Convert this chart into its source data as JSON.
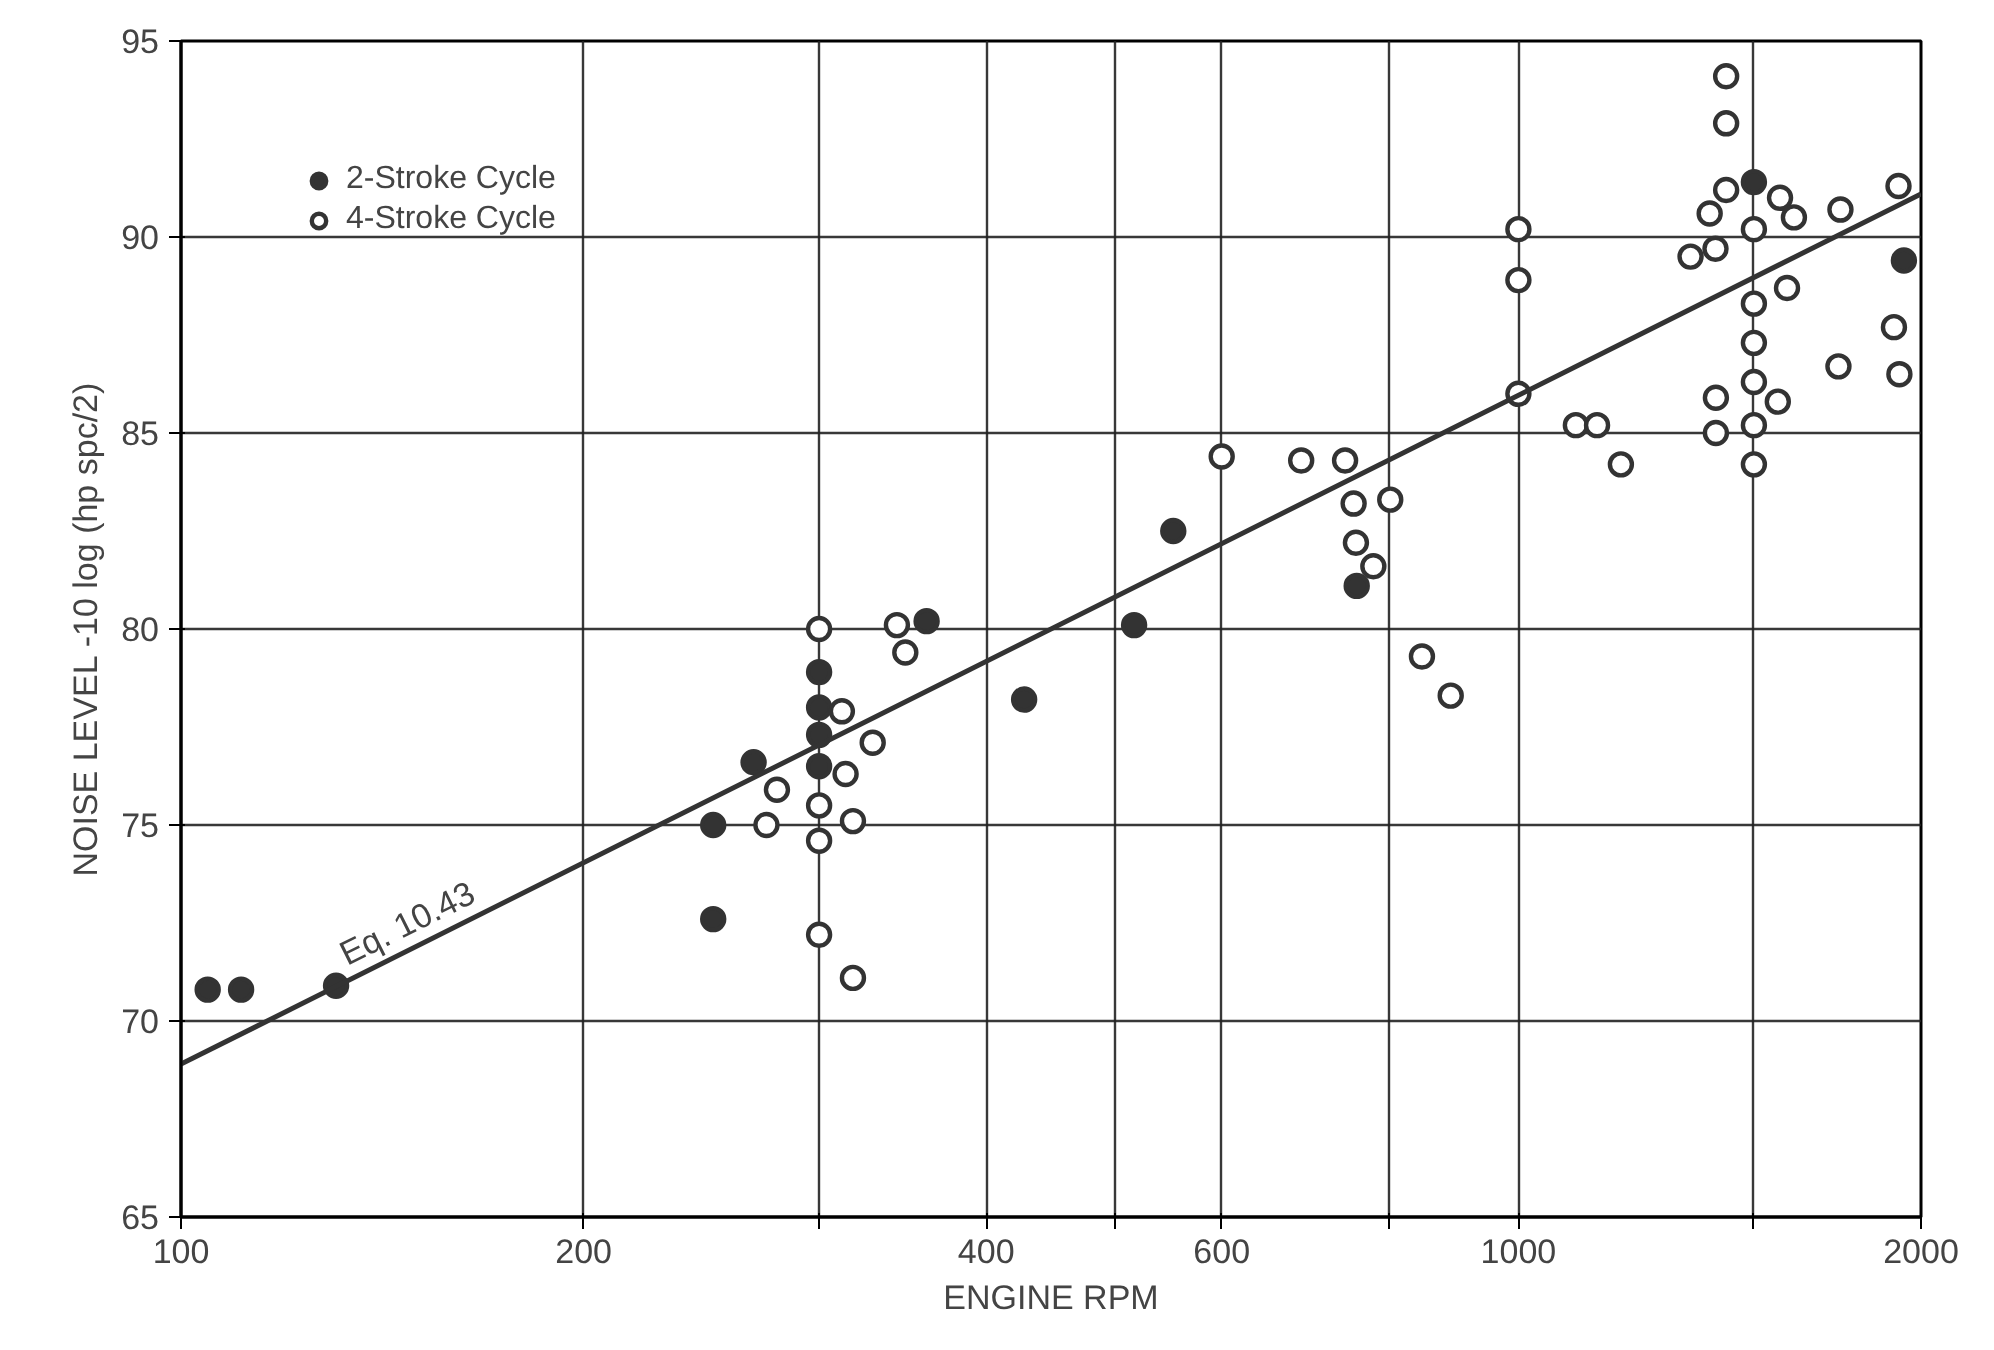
{
  "chart_data": {
    "type": "scatter",
    "xlabel": "ENGINE RPM",
    "ylabel": "NOISE LEVEL -10 log (hp spc/2)",
    "log": "x",
    "xlim": [
      100,
      2000
    ],
    "ylim": [
      65,
      95
    ],
    "xticks": [
      100,
      200,
      {
        "value": 300,
        "label": null
      },
      400,
      {
        "value": 500,
        "label": null
      },
      600,
      {
        "value": 800,
        "label": null
      },
      1000,
      {
        "value": 1500,
        "label": null
      },
      2000
    ],
    "yticks": [
      65,
      70,
      75,
      80,
      85,
      90,
      95
    ],
    "grid": true,
    "legend": "top left",
    "annotations": [
      "Eq. 10.43"
    ],
    "series": [
      {
        "name": "2-Stroke Cycle",
        "marker": "circle",
        "color": "#333333",
        "x": [
          104.7,
          110.9,
          130.6,
          250,
          250,
          268,
          300,
          300,
          300,
          300,
          361,
          427,
          516,
          552,
          757,
          1500,
          1942
        ],
        "values": [
          70.8,
          70.8,
          70.9,
          75.0,
          72.6,
          76.6,
          78.9,
          78.0,
          77.3,
          76.5,
          80.2,
          78.2,
          80.1,
          82.5,
          81.1,
          91.4,
          89.4
        ]
      },
      {
        "name": "4-Stroke Cycle",
        "marker": "circle",
        "color": "#ffffff",
        "x": [
          300,
          343,
          348,
          312,
          329,
          314,
          279,
          274,
          300,
          300,
          318,
          300,
          318,
          600,
          688,
          742,
          753,
          802,
          756,
          779,
          847,
          890,
          1000,
          1000,
          1000,
          1104,
          1145,
          1193,
          1345,
          1404,
          1390,
          1430,
          1430,
          1430,
          1500,
          1500,
          1500,
          1500,
          1500,
          1500,
          1405,
          1405,
          1563,
          1588,
          1569,
          1607,
          1741,
          1735,
          1924,
          1909,
          1927
        ],
        "values": [
          80.0,
          80.1,
          79.4,
          77.9,
          77.1,
          76.3,
          75.9,
          75.0,
          75.5,
          74.6,
          75.1,
          72.2,
          71.1,
          84.4,
          84.3,
          84.3,
          83.2,
          83.3,
          82.2,
          81.6,
          79.3,
          78.3,
          86.0,
          90.2,
          88.9,
          85.2,
          85.2,
          84.2,
          89.5,
          89.7,
          90.6,
          91.2,
          94.1,
          92.9,
          90.2,
          88.3,
          87.3,
          86.3,
          85.2,
          84.2,
          85.9,
          85.0,
          85.8,
          88.7,
          91.0,
          90.5,
          90.7,
          86.7,
          91.3,
          87.7,
          86.5
        ]
      },
      {
        "type": "line",
        "marker": "none",
        "color": "#333333",
        "x": [
          100,
          2000
        ],
        "values": [
          68.9,
          91.1
        ]
      }
    ]
  }
}
